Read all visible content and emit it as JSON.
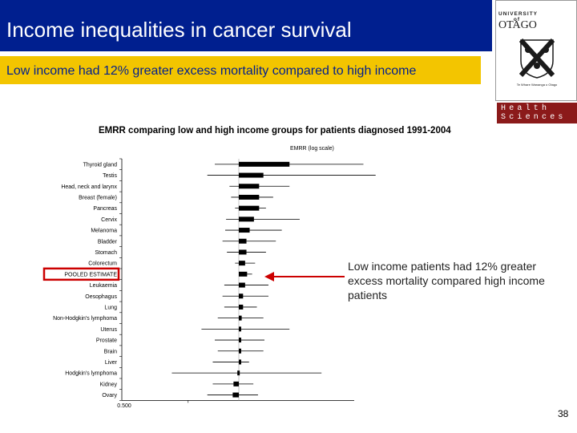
{
  "title": "Income inequalities in cancer survival",
  "subtitle": "Low income had 12% greater excess mortality compared to high income",
  "logo": {
    "university": "UNIVERSITY",
    "of": "of",
    "name": "OTAGO",
    "motto": "Te Whare Wananga o Otago",
    "division_line1": "Health",
    "division_line2": "Sciences"
  },
  "annotation": "Low income patients had 12% greater excess mortality compared high income patients",
  "page_number": "38",
  "colors": {
    "title_bar": "#001f8f",
    "subtitle_bar": "#f3c500",
    "highlight_box": "#cc0000",
    "arrow": "#cc0000",
    "health_sciences": "#8b1a1a"
  },
  "chart_data": {
    "type": "forest",
    "title": "EMRR comparing low and high income groups for patients diagnosed 1991-2004",
    "xlabel": "EMRR (log scale)",
    "x_tick_labels": [
      "0.500"
    ],
    "x_scale": "log",
    "reference_line": 1.0,
    "highlighted_category": "POOLED ESTIMATE",
    "categories": [
      "Thyroid gland",
      "Testis",
      "Head, neck and larynx",
      "Breast (female)",
      "Pancreas",
      "Cervix",
      "Melanoma",
      "Bladder",
      "Stomach",
      "Colorectum",
      "POOLED ESTIMATE",
      "Leukaemia",
      "Oesophagus",
      "Lung",
      "Non-Hodgkin's lymphoma",
      "Uterus",
      "Prostate",
      "Brain",
      "Liver",
      "Hodgkin's lymphoma",
      "Kidney",
      "Ovary"
    ],
    "estimates": [
      2.0,
      1.4,
      1.32,
      1.32,
      1.32,
      1.23,
      1.16,
      1.11,
      1.11,
      1.09,
      1.12,
      1.09,
      1.06,
      1.06,
      1.04,
      1.03,
      1.03,
      1.02,
      1.0,
      0.98,
      0.93,
      0.92
    ],
    "lower": [
      0.72,
      0.65,
      0.88,
      0.9,
      0.95,
      0.84,
      0.83,
      0.8,
      0.85,
      0.95,
      1.05,
      0.82,
      0.8,
      0.82,
      0.75,
      0.6,
      0.72,
      0.75,
      0.7,
      0.4,
      0.7,
      0.65
    ],
    "upper": [
      5.5,
      6.5,
      2.0,
      1.6,
      1.45,
      2.3,
      1.8,
      1.66,
      1.45,
      1.25,
      1.2,
      1.5,
      1.5,
      1.28,
      1.4,
      2.0,
      1.42,
      1.4,
      1.15,
      3.1,
      1.22,
      1.3
    ]
  }
}
